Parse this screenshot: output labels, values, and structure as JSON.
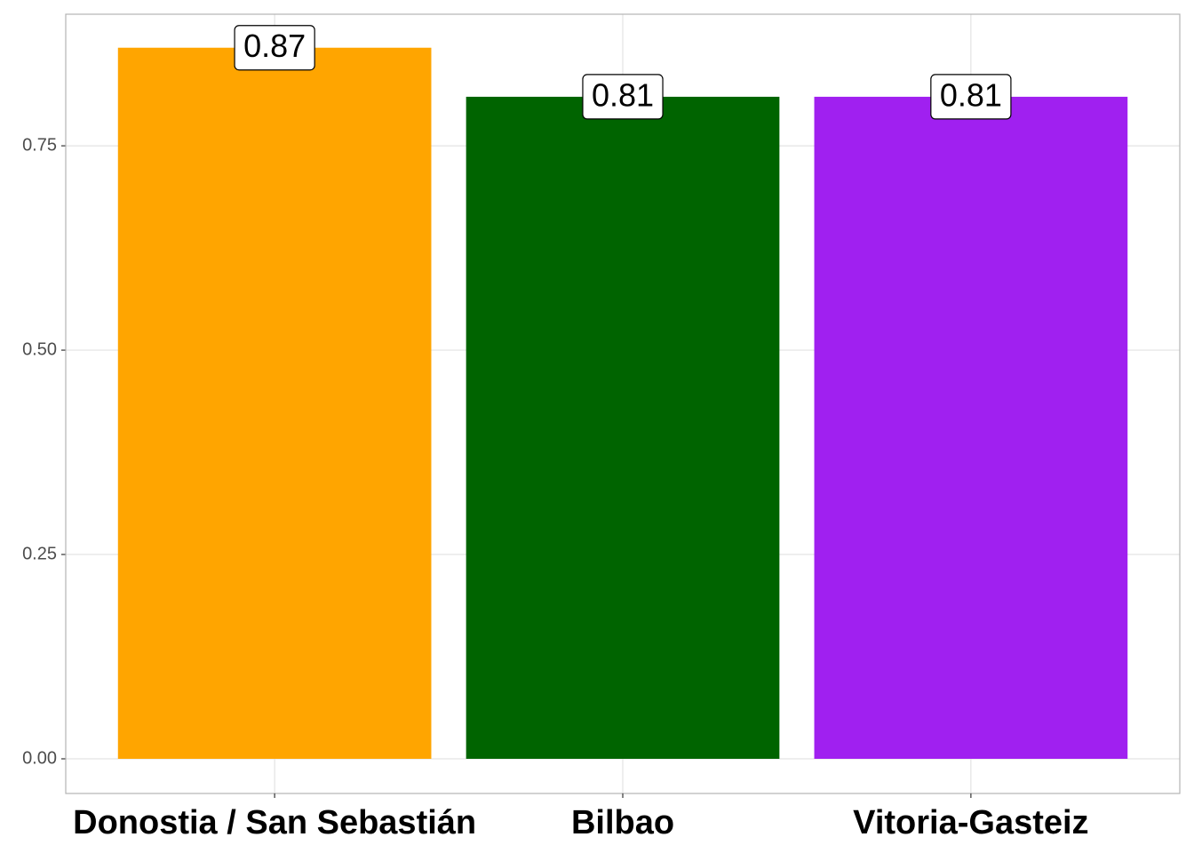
{
  "chart_data": {
    "type": "bar",
    "categories": [
      "Donostia / San Sebastián",
      "Bilbao",
      "Vitoria-Gasteiz"
    ],
    "values": [
      0.87,
      0.81,
      0.81
    ],
    "colors": [
      "#ffa500",
      "#006400",
      "#a020f0"
    ],
    "ylim": [
      -0.0424,
      0.911
    ],
    "yticks": [
      {
        "value": 0,
        "label": "0.00"
      },
      {
        "value": 0.25,
        "label": "0.25"
      },
      {
        "value": 0.5,
        "label": "0.50"
      },
      {
        "value": 0.75,
        "label": "0.75"
      }
    ],
    "grid": true
  }
}
